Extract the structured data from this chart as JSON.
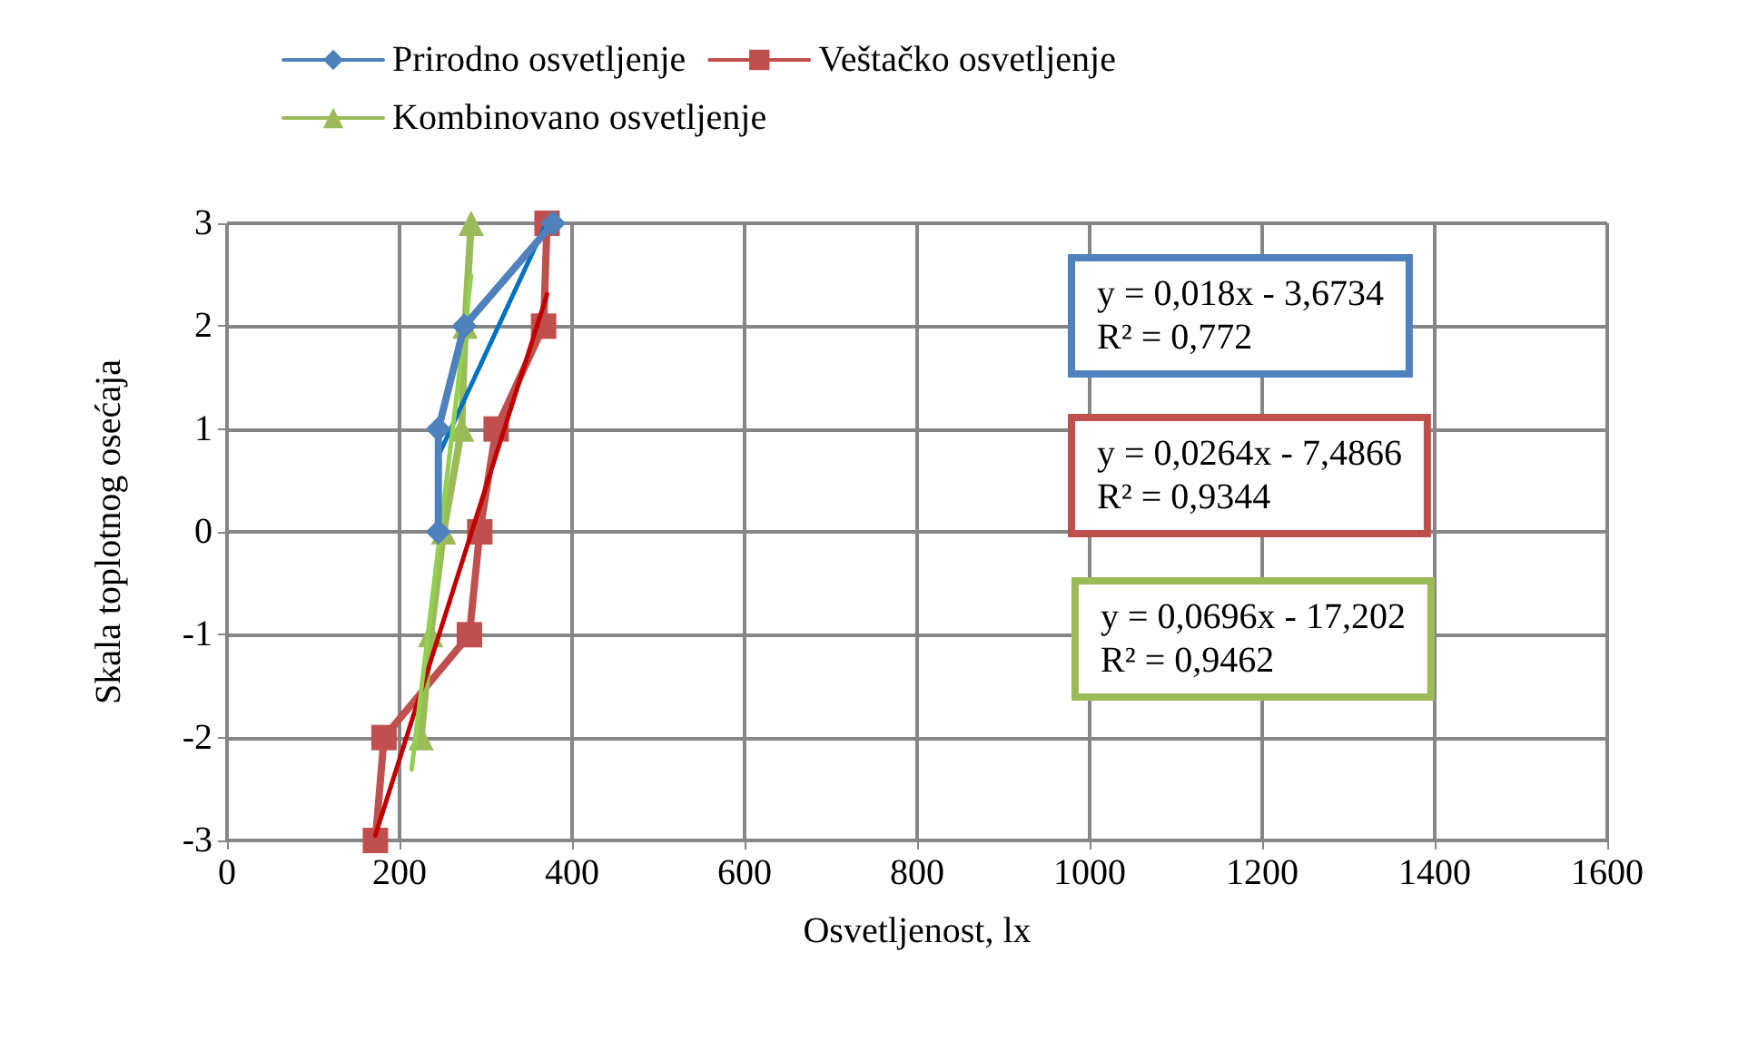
{
  "chart_data": {
    "type": "line",
    "xlabel": "Osvetljenost, lx",
    "ylabel": "Skala toplotnog osećaja",
    "xlim": [
      0,
      1600
    ],
    "xticks": [
      0,
      200,
      400,
      600,
      800,
      1000,
      1200,
      1400,
      1600
    ],
    "ylim": [
      -3,
      3
    ],
    "yticks": [
      -3,
      -2,
      -1,
      0,
      1,
      2,
      3
    ],
    "grid": true,
    "legend": "top",
    "line_style": "solid",
    "series": [
      {
        "name": "Prirodno osvetljenje",
        "color": "#4f81bd",
        "marker": "diamond",
        "x": [
          245,
          245,
          275,
          378
        ],
        "values": [
          0,
          1,
          2,
          3
        ]
      },
      {
        "name": "Veštačko osvetljenje",
        "color": "#c0504d",
        "marker": "square",
        "x": [
          172,
          182,
          281,
          293,
          312,
          367,
          371
        ],
        "values": [
          -3,
          -2,
          -1,
          0,
          1,
          2,
          3
        ]
      },
      {
        "name": "Kombinovano osvetljenje",
        "color": "#9bbb59",
        "marker": "triangle",
        "x": [
          225,
          236,
          251,
          272,
          276,
          283
        ],
        "values": [
          -2,
          -1,
          0,
          1,
          2,
          3
        ]
      },
      {
        "color": "#0070c0",
        "marker": "none",
        "x": [
          245,
          370
        ],
        "values": [
          0.74,
          3.0
        ]
      },
      {
        "color": "#c00000",
        "marker": "none",
        "x": [
          172,
          371
        ],
        "values": [
          -2.95,
          2.31
        ]
      },
      {
        "color": "#92d050",
        "marker": "none",
        "x": [
          214,
          283
        ],
        "values": [
          -2.31,
          2.49
        ]
      }
    ],
    "annotations": [
      "y = 0,018x - 3,6734\nR² = 0,772",
      "y = 0,0264x - 7,4866\nR² = 0,9344",
      "y = 0,0696x - 17,202\nR² = 0,9462"
    ]
  }
}
